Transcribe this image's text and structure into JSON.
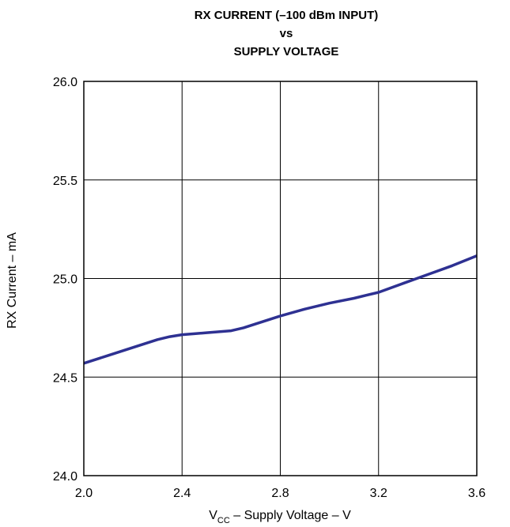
{
  "chart_data": {
    "type": "line",
    "title_lines": [
      "RX CURRENT (–100 dBm INPUT)",
      "vs",
      "SUPPLY VOLTAGE"
    ],
    "xlabel": {
      "main": "V",
      "subscript": "CC",
      "rest": " – Supply Voltage – V"
    },
    "ylabel": "RX Current – mA",
    "xlim": [
      2.0,
      3.6
    ],
    "ylim": [
      24.0,
      26.0
    ],
    "x_ticks": [
      "2.0",
      "2.4",
      "2.8",
      "3.2",
      "3.6"
    ],
    "y_ticks": [
      "24.0",
      "24.5",
      "25.0",
      "25.5",
      "26.0"
    ],
    "grid": true,
    "line_color": "#2e3192",
    "series": [
      {
        "x": [
          2.0,
          2.1,
          2.2,
          2.3,
          2.35,
          2.4,
          2.45,
          2.5,
          2.55,
          2.6,
          2.65,
          2.7,
          2.8,
          2.9,
          3.0,
          3.1,
          3.15,
          3.2,
          3.3,
          3.4,
          3.5,
          3.6
        ],
        "y": [
          24.57,
          24.61,
          24.65,
          24.69,
          24.705,
          24.715,
          24.72,
          24.725,
          24.73,
          24.735,
          24.75,
          24.77,
          24.81,
          24.845,
          24.875,
          24.9,
          24.915,
          24.93,
          24.975,
          25.02,
          25.065,
          25.115
        ]
      }
    ]
  }
}
